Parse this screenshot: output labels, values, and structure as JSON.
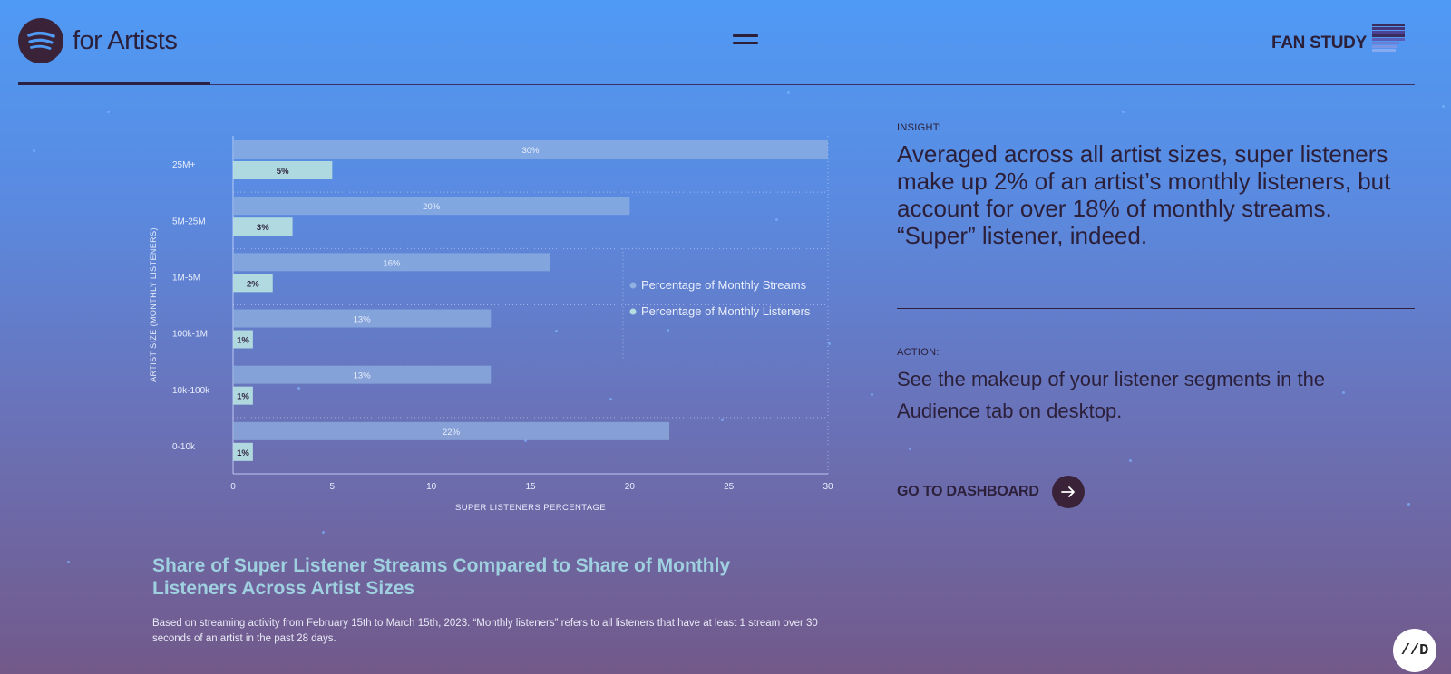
{
  "header": {
    "logo_text": "for Artists",
    "menu_label": "menu",
    "fan_study_label": "FAN STUDY"
  },
  "chart_data": {
    "type": "bar",
    "orientation": "horizontal",
    "title": "Share of Super Listener Streams Compared to Share of Monthly Listeners Across Artist Sizes",
    "xlabel": "SUPER LISTENERS PERCENTAGE",
    "ylabel": "ARTIST SIZE (MONTHLY LISTENERS)",
    "categories": [
      "25M+",
      "5M-25M",
      "1M-5M",
      "100k-1M",
      "10k-100k",
      "0-10k"
    ],
    "series": [
      {
        "name": "Percentage of Monthly Streams",
        "values": [
          30,
          20,
          16,
          13,
          13,
          22
        ],
        "labels": [
          "30%",
          "20%",
          "16%",
          "13%",
          "13%",
          "22%"
        ],
        "color": "#8fb0e0"
      },
      {
        "name": "Percentage of Monthly Listeners",
        "values": [
          5,
          3,
          2,
          1,
          1,
          1
        ],
        "labels": [
          "5%",
          "3%",
          "2%",
          "1%",
          "1%",
          "1%"
        ],
        "color": "#b4dde0"
      }
    ],
    "xlim": [
      0,
      30
    ],
    "xticks": [
      "0",
      "5",
      "10",
      "15",
      "20",
      "25",
      "30"
    ],
    "grid": true,
    "legend": "right"
  },
  "chart_note": "Based on streaming activity from February 15th to March 15th, 2023. “Monthly listeners” refers to all listeners that have at least 1 stream over 30 seconds of an artist in the past 28 days.",
  "insight": {
    "label": "INSIGHT:",
    "text": "Averaged across all artist sizes, super listeners make up 2% of an artist’s monthly listeners, but account for over 18% of monthly streams. “Super” listener, indeed."
  },
  "action": {
    "label": "ACTION:",
    "text": "See the makeup of your listener segments in the Audience tab on desktop."
  },
  "cta": {
    "label": "GO TO DASHBOARD",
    "icon": "arrow-right-icon"
  },
  "corner_badge": "//D",
  "colors": {
    "text_dark": "#2b1f3a",
    "title_teal": "#9fd0df",
    "streams_bar": "#8fb0e0",
    "listeners_bar": "#b4dde0"
  }
}
